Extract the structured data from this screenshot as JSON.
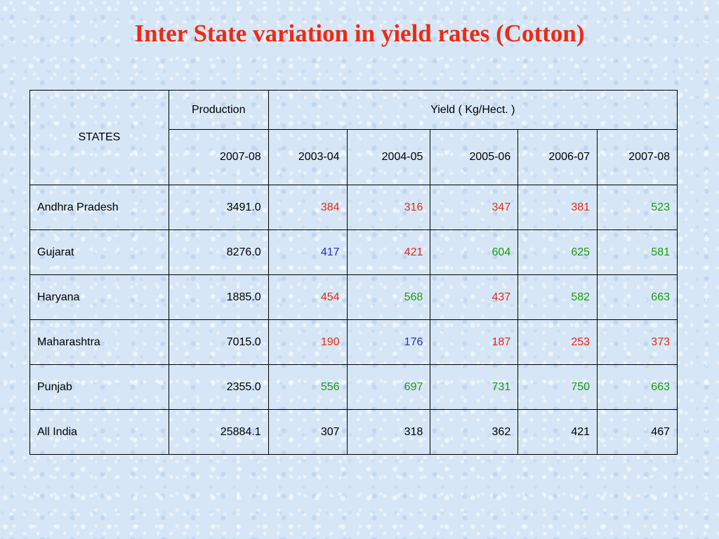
{
  "title": {
    "text": "Inter State variation in yield rates (Cotton)",
    "color": "#ee2a12"
  },
  "colors": {
    "red": "#e42a12",
    "green": "#189a10",
    "blue": "#2a2ac8",
    "black": "#000000"
  },
  "table": {
    "headers": {
      "states": "STATES",
      "production": "Production",
      "yield": "Yield ( Kg/Hect. )",
      "production_year": "2007-08",
      "yield_years": [
        "2003-04",
        "2004-05",
        "2005-06",
        "2006-07",
        "2007-08"
      ]
    },
    "rows": [
      {
        "state": "Andhra Pradesh",
        "production": "3491.0",
        "yields": [
          {
            "v": "384",
            "c": "red"
          },
          {
            "v": "316",
            "c": "red"
          },
          {
            "v": "347",
            "c": "red"
          },
          {
            "v": "381",
            "c": "red"
          },
          {
            "v": "523",
            "c": "green"
          }
        ]
      },
      {
        "state": "Gujarat",
        "production": "8276.0",
        "yields": [
          {
            "v": "417",
            "c": "blue"
          },
          {
            "v": "421",
            "c": "red"
          },
          {
            "v": "604",
            "c": "green"
          },
          {
            "v": "625",
            "c": "green"
          },
          {
            "v": "581",
            "c": "green"
          }
        ]
      },
      {
        "state": "Haryana",
        "production": "1885.0",
        "yields": [
          {
            "v": "454",
            "c": "red"
          },
          {
            "v": "568",
            "c": "green"
          },
          {
            "v": "437",
            "c": "red"
          },
          {
            "v": "582",
            "c": "green"
          },
          {
            "v": "663",
            "c": "green"
          }
        ]
      },
      {
        "state": "Maharashtra",
        "production": "7015.0",
        "yields": [
          {
            "v": "190",
            "c": "red"
          },
          {
            "v": "176",
            "c": "blue"
          },
          {
            "v": "187",
            "c": "red"
          },
          {
            "v": "253",
            "c": "red"
          },
          {
            "v": "373",
            "c": "red"
          }
        ]
      },
      {
        "state": "Punjab",
        "production": "2355.0",
        "yields": [
          {
            "v": "556",
            "c": "green"
          },
          {
            "v": "697",
            "c": "green"
          },
          {
            "v": "731",
            "c": "green"
          },
          {
            "v": "750",
            "c": "green"
          },
          {
            "v": "663",
            "c": "green"
          }
        ]
      },
      {
        "state": "All India",
        "production": "25884.1",
        "yields": [
          {
            "v": "307",
            "c": "black"
          },
          {
            "v": "318",
            "c": "black"
          },
          {
            "v": "362",
            "c": "black"
          },
          {
            "v": "421",
            "c": "black"
          },
          {
            "v": "467",
            "c": "black"
          }
        ]
      }
    ]
  }
}
